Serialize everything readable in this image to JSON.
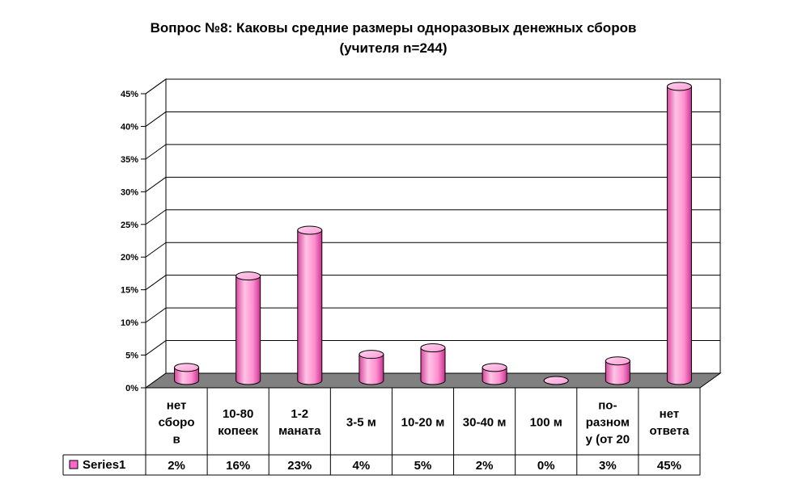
{
  "chart_data": {
    "type": "bar",
    "title": "Вопрос №8: Каковы средние размеры одноразовых денежных сборов",
    "subtitle": "(учителя n=244)",
    "categories": [
      [
        "нет",
        "сборо",
        "в"
      ],
      [
        "10-80",
        "копеек"
      ],
      [
        "1-2",
        "маната"
      ],
      [
        "3-5 м"
      ],
      [
        "10-20 м"
      ],
      [
        "30-40 м"
      ],
      [
        "100 м"
      ],
      [
        "по-",
        "разном",
        "у (от 20"
      ],
      [
        "нет",
        "ответа"
      ]
    ],
    "series": [
      {
        "name": "Series1",
        "values": [
          2,
          16,
          23,
          4,
          5,
          2,
          0,
          3,
          45
        ],
        "labels": [
          "2%",
          "16%",
          "23%",
          "4%",
          "5%",
          "2%",
          "0%",
          "3%",
          "45%"
        ],
        "color": "#ff66cc"
      }
    ],
    "ylim": [
      0,
      45
    ],
    "yticks": [
      "0%",
      "5%",
      "10%",
      "15%",
      "20%",
      "25%",
      "30%",
      "35%",
      "40%",
      "45%"
    ],
    "grid": true,
    "legend": "data-table"
  },
  "colors": {
    "bar_light": "#ffc6e6",
    "bar_mid": "#ff7fca",
    "bar_dark": "#d43d98",
    "floor": "#808080",
    "axis": "#000000",
    "grid": "#000000"
  }
}
